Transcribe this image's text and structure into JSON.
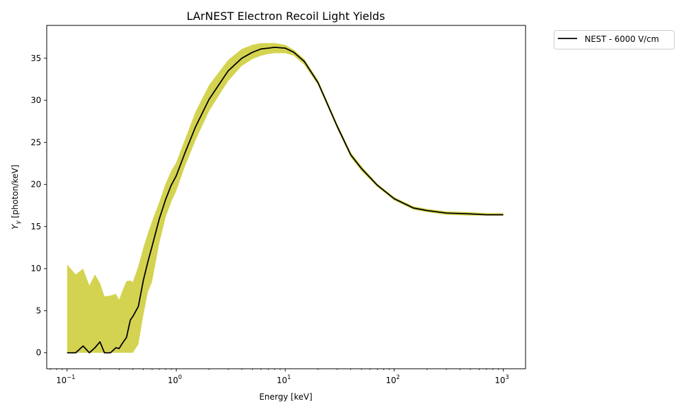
{
  "chart_data": {
    "type": "line",
    "title": "LArNEST Electron Recoil Light Yields",
    "xlabel": "Energy [keV]",
    "ylabel": "Y",
    "ylabel_sub": "γ",
    "ylabel_unit": " [photon/keV]",
    "xscale": "log",
    "xlim": [
      0.065,
      1600
    ],
    "ylim": [
      -1.9,
      38.9
    ],
    "xticks": [
      {
        "value": 0.1,
        "base": "10",
        "exp": "−1"
      },
      {
        "value": 1,
        "base": "10",
        "exp": "0"
      },
      {
        "value": 10,
        "base": "10",
        "exp": "1"
      },
      {
        "value": 100,
        "base": "10",
        "exp": "2"
      },
      {
        "value": 1000,
        "base": "10",
        "exp": "3"
      }
    ],
    "yticks": [
      0,
      5,
      10,
      15,
      20,
      25,
      30,
      35
    ],
    "grid": false,
    "legend_placement": "outside-top-right",
    "series": [
      {
        "name": "NEST - 6000 V/cm",
        "color": "#000000",
        "band_color": "#cdcb32",
        "x": [
          0.1,
          0.12,
          0.14,
          0.16,
          0.18,
          0.2,
          0.22,
          0.25,
          0.28,
          0.3,
          0.32,
          0.35,
          0.38,
          0.4,
          0.45,
          0.5,
          0.55,
          0.6,
          0.7,
          0.8,
          0.9,
          1.0,
          1.2,
          1.5,
          2,
          3,
          4,
          5,
          6,
          7,
          8,
          10,
          12,
          15,
          20,
          30,
          40,
          50,
          70,
          100,
          150,
          200,
          300,
          500,
          700,
          1000
        ],
        "y": [
          0,
          0,
          0.8,
          0,
          0.6,
          1.3,
          0,
          0,
          0.6,
          0.5,
          1.1,
          1.8,
          3.9,
          4.3,
          5.5,
          8.6,
          10.8,
          12.6,
          15.9,
          18.2,
          19.9,
          21.0,
          23.7,
          26.8,
          30.1,
          33.5,
          35.0,
          35.7,
          36.1,
          36.2,
          36.3,
          36.2,
          35.7,
          34.6,
          32.1,
          26.9,
          23.5,
          21.9,
          19.9,
          18.3,
          17.2,
          16.9,
          16.6,
          16.5,
          16.4,
          16.4
        ],
        "upper": [
          10.5,
          9.3,
          10.0,
          8.0,
          9.3,
          8.3,
          6.7,
          6.8,
          7.0,
          6.3,
          7.3,
          8.5,
          8.6,
          8.4,
          10.3,
          12.5,
          14.2,
          15.6,
          17.9,
          20.1,
          21.6,
          22.6,
          25.3,
          28.6,
          31.8,
          34.8,
          36.1,
          36.6,
          36.8,
          36.8,
          36.8,
          36.6,
          36.0,
          34.9,
          32.4,
          27.2,
          23.8,
          22.2,
          20.1,
          18.5,
          17.4,
          17.1,
          16.8,
          16.7,
          16.6,
          16.6
        ],
        "lower": [
          0,
          0,
          0,
          0,
          0,
          0,
          0,
          0,
          0,
          0,
          0,
          0,
          0,
          0,
          1.0,
          4.5,
          7.2,
          8.4,
          13.0,
          16.1,
          17.9,
          19.2,
          22.1,
          25.2,
          28.7,
          32.3,
          34.1,
          34.9,
          35.3,
          35.5,
          35.6,
          35.6,
          35.3,
          34.2,
          31.8,
          26.6,
          23.2,
          21.6,
          19.7,
          18.1,
          17.0,
          16.7,
          16.4,
          16.3,
          16.3,
          16.3
        ]
      }
    ]
  }
}
